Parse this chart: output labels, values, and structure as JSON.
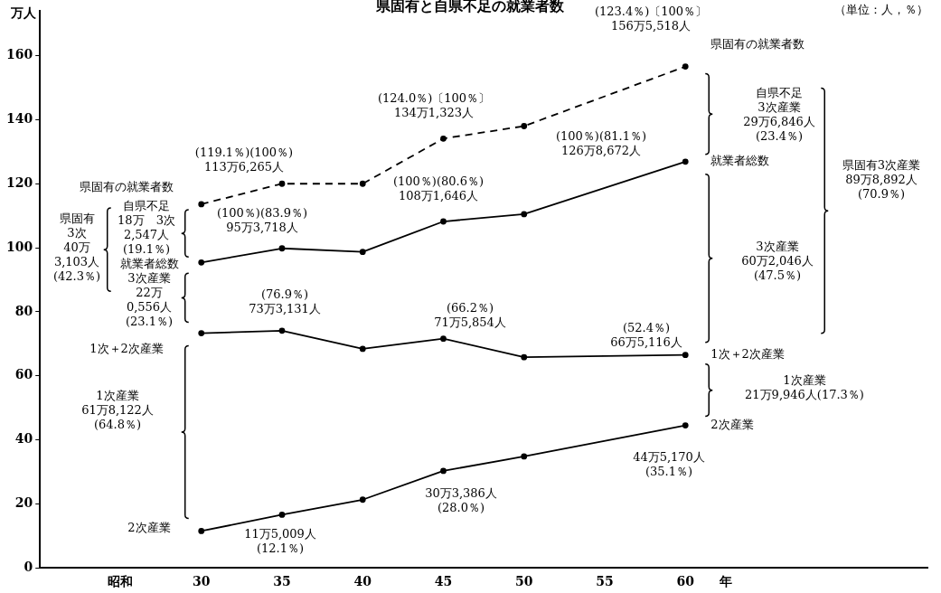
{
  "chart_data": {
    "type": "line",
    "title": "県固有と自県不足の就業者数",
    "ylabel": "万人",
    "x": [
      30,
      35,
      40,
      45,
      50,
      60
    ],
    "xlim": [
      20,
      75
    ],
    "xticks": [
      {
        "value": 25,
        "label": "昭和"
      },
      30,
      35,
      40,
      45,
      50,
      55,
      60,
      {
        "value": 62.5,
        "label": "年"
      }
    ],
    "ylim": [
      0,
      174
    ],
    "yticks": [
      0,
      20,
      40,
      60,
      80,
      100,
      120,
      140,
      160
    ],
    "grid": false,
    "legend": false,
    "marker": "circle",
    "series": [
      {
        "name": "県固有の就業者数",
        "color": "#000000",
        "line_style": "dashed",
        "values": [
          113.6,
          120.0,
          120.0,
          134.1,
          138.0,
          156.6
        ]
      },
      {
        "name": "就業者総数",
        "color": "#000000",
        "line_style": "solid",
        "values": [
          95.4,
          99.8,
          98.7,
          108.2,
          110.5,
          126.9
        ]
      },
      {
        "name": "1次＋2次産業",
        "color": "#000000",
        "line_style": "solid",
        "values": [
          73.3,
          74.1,
          68.4,
          71.6,
          65.8,
          66.5
        ]
      },
      {
        "name": "2次産業",
        "color": "#000000",
        "line_style": "solid",
        "values": [
          11.5,
          16.6,
          21.3,
          30.3,
          34.8,
          44.5
        ]
      }
    ],
    "annotations": [
      "（単位：人，％）",
      "(119.1％)(100％)\n113万6,265人",
      "(124.0％)〔100％〕\n134万1,323人",
      "(123.4％)〔100％〕\n156万5,518人",
      "(100％)(83.9％)\n95万3,718人",
      "(100％)(80.6％)\n108万1,646人",
      "(100％)(81.1％)\n126万8,672人",
      "(76.9％)\n73万3,131人",
      "(66.2％)\n71万5,854人",
      "(52.4％)\n66万5,116人",
      "11万5,009人\n(12.1％)",
      "30万3,386人\n(28.0％)",
      "44万5,170人\n(35.1％)",
      "自県不足\n3次産業\n29万6,846人\n(23.4％)",
      "3次産業\n60万2,046人\n(47.5％)",
      "県固有3次産業\n89万8,892人\n(70.9％)",
      "1次産業\n21万9,946人(17.3％)",
      "県固有の就業者数",
      "自県不足\n18万　3次\n2,547人\n(19.1％)",
      "県固有\n3次\n40万\n3,103人\n(42.3％)",
      "就業者総数\n3次産業\n22万\n0,556人\n(23.1％)",
      "1次＋2次産業",
      "1次産業\n61万8,122人\n(64.8％)",
      "2次産業"
    ]
  }
}
